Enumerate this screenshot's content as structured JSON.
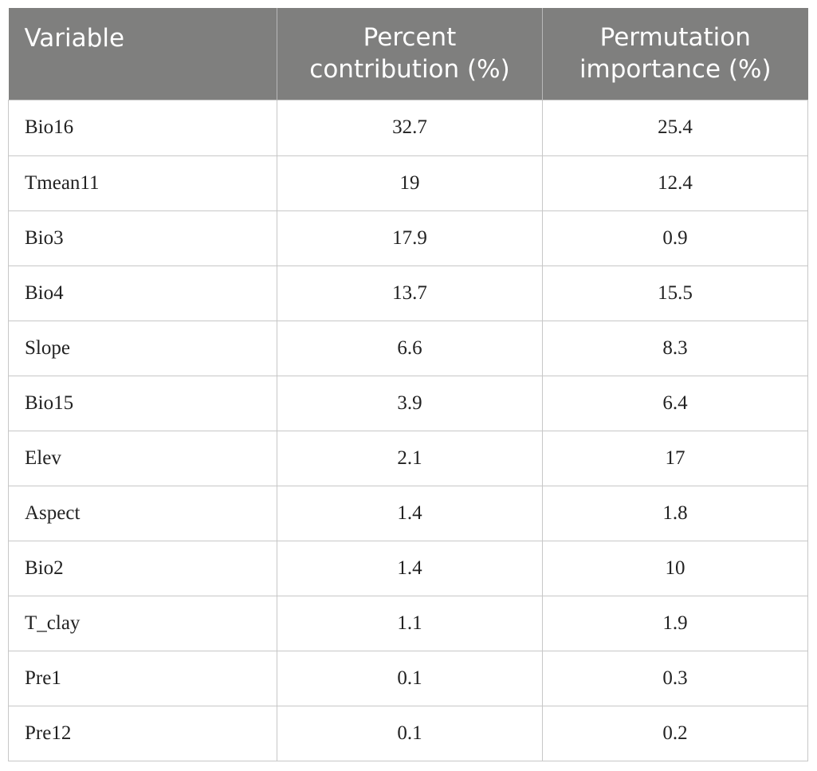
{
  "table": {
    "headers": [
      "Variable",
      "Percent contribution (%)",
      "Permutation importance (%)"
    ],
    "header_lines": [
      [
        "Variable"
      ],
      [
        "Percent",
        "contribution (%)"
      ],
      [
        "Permutation",
        "importance (%)"
      ]
    ],
    "rows": [
      {
        "variable": "Bio16",
        "percent": "32.7",
        "permutation": "25.4"
      },
      {
        "variable": "Tmean11",
        "percent": "19",
        "permutation": "12.4"
      },
      {
        "variable": "Bio3",
        "percent": "17.9",
        "permutation": "0.9"
      },
      {
        "variable": "Bio4",
        "percent": "13.7",
        "permutation": "15.5"
      },
      {
        "variable": "Slope",
        "percent": "6.6",
        "permutation": "8.3"
      },
      {
        "variable": "Bio15",
        "percent": "3.9",
        "permutation": "6.4"
      },
      {
        "variable": "Elev",
        "percent": "2.1",
        "permutation": "17"
      },
      {
        "variable": "Aspect",
        "percent": "1.4",
        "permutation": "1.8"
      },
      {
        "variable": "Bio2",
        "percent": "1.4",
        "permutation": "10"
      },
      {
        "variable": "T_clay",
        "percent": "1.1",
        "permutation": "1.9"
      },
      {
        "variable": "Pre1",
        "percent": "0.1",
        "permutation": "0.3"
      },
      {
        "variable": "Pre12",
        "percent": "0.1",
        "permutation": "0.2"
      }
    ]
  },
  "colors": {
    "header_bg": "#7f7f7e",
    "header_text": "#ffffff",
    "border": "#c7c7c7"
  }
}
